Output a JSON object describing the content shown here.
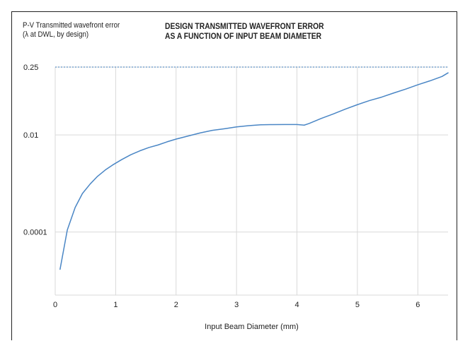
{
  "chart_data": {
    "type": "line",
    "title_lines": [
      "DESIGN TRANSMITTED WAVEFRONT ERROR",
      "AS A FUNCTION OF INPUT BEAM DIAMETER"
    ],
    "ylabel_lines": [
      "P-V Transmitted wavefront error",
      "(λ at DWL, by design)"
    ],
    "xlabel": "Input Beam Diameter (mm)",
    "y_scale": "log",
    "xlim": [
      0,
      6.5
    ],
    "ylim": [
      5e-06,
      0.25
    ],
    "x_ticks": [
      0,
      1,
      2,
      3,
      4,
      5,
      6
    ],
    "x_tick_labels": [
      "0",
      "1",
      "2",
      "3",
      "4",
      "5",
      "6"
    ],
    "y_ticks": [
      0.25,
      0.01,
      0.0001
    ],
    "y_tick_labels": [
      "0.25",
      "0.01",
      "0.0001"
    ],
    "grid": true,
    "reference_line": {
      "y": 0.25,
      "style": "dashed",
      "color": "#3a78b8"
    },
    "series": [
      {
        "color": "#4a86c5",
        "x": [
          0.08,
          0.2,
          0.33,
          0.45,
          0.58,
          0.7,
          0.83,
          0.95,
          1.1,
          1.25,
          1.4,
          1.55,
          1.7,
          1.85,
          2.0,
          2.2,
          2.4,
          2.6,
          2.8,
          3.0,
          3.2,
          3.4,
          3.6,
          3.8,
          4.0,
          4.12,
          4.2,
          4.4,
          4.6,
          4.8,
          5.0,
          5.2,
          5.4,
          5.6,
          5.8,
          6.0,
          6.2,
          6.4,
          6.5
        ],
        "y": [
          1.7e-05,
          0.00011,
          0.00032,
          0.00062,
          0.00098,
          0.0014,
          0.0019,
          0.0024,
          0.0031,
          0.0039,
          0.0047,
          0.0055,
          0.0062,
          0.0072,
          0.0082,
          0.0095,
          0.011,
          0.0124,
          0.0134,
          0.0146,
          0.0155,
          0.0162,
          0.0163,
          0.0164,
          0.0164,
          0.0159,
          0.0172,
          0.0218,
          0.027,
          0.034,
          0.042,
          0.051,
          0.06,
          0.073,
          0.088,
          0.108,
          0.13,
          0.16,
          0.19
        ]
      }
    ]
  }
}
